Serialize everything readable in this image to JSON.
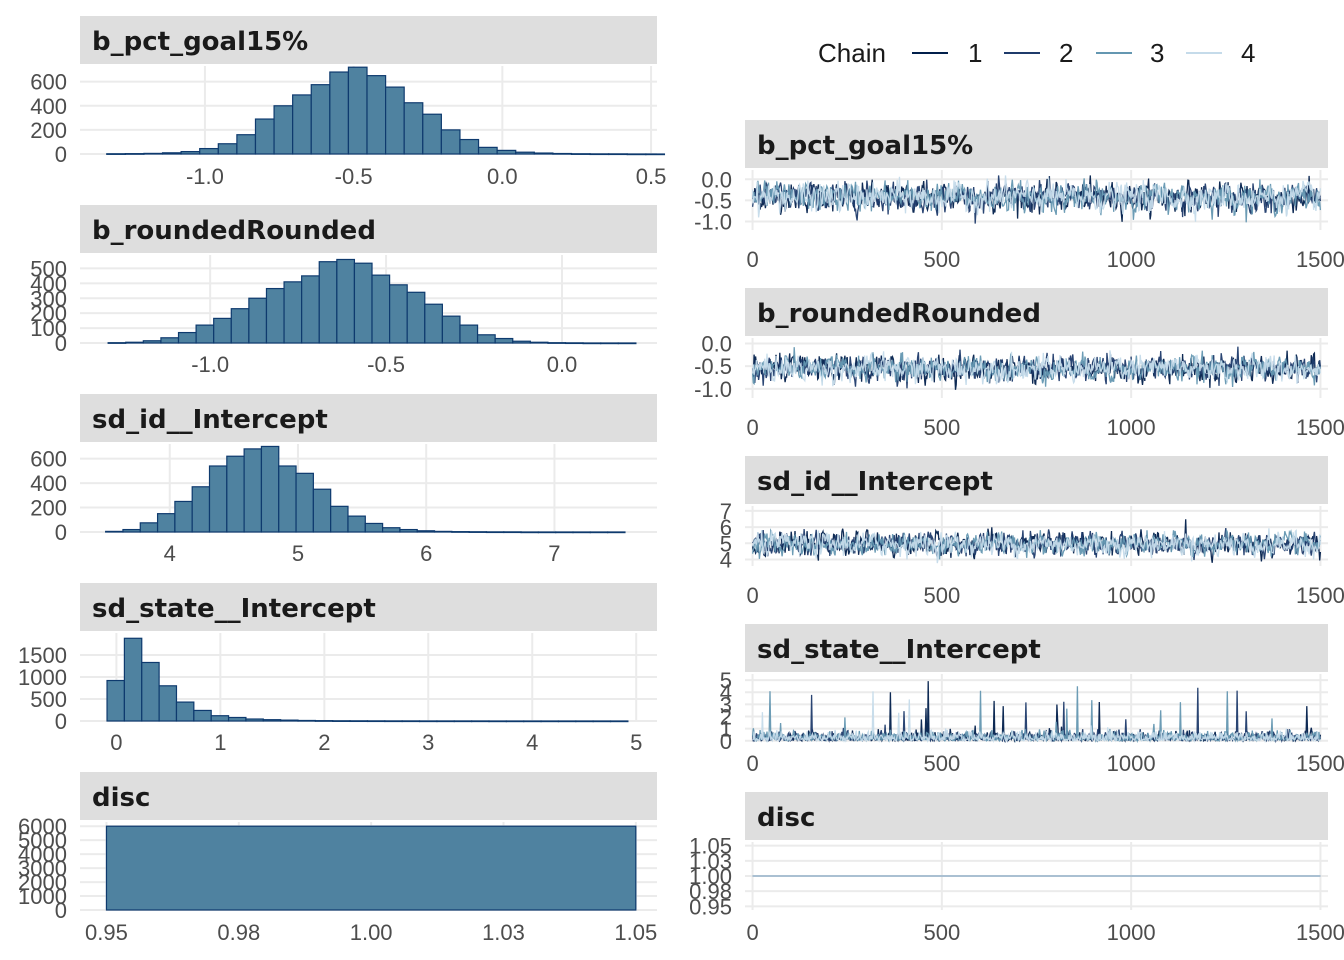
{
  "legend": {
    "title": "Chain",
    "items": [
      {
        "label": "1",
        "color": "#011f4b"
      },
      {
        "label": "2",
        "color": "#1f3b6b"
      },
      {
        "label": "3",
        "color": "#6497b1"
      },
      {
        "label": "4",
        "color": "#c5dbea"
      }
    ]
  },
  "chart_data": [
    {
      "type": "bar",
      "kind": "histogram",
      "title": "b_pct_goal15%",
      "xlim": [
        -1.42,
        0.52
      ],
      "ylim": [
        0,
        730
      ],
      "xticks": [
        -1.0,
        -0.5,
        0.0,
        0.5
      ],
      "xtick_labels": [
        "-1.0",
        "-0.5",
        "0.0",
        "0.5"
      ],
      "yticks": [
        0,
        200,
        400,
        600
      ],
      "ytick_labels": [
        "0",
        "200",
        "400",
        "600"
      ],
      "bin_start": -1.33,
      "bin_width": 0.0625,
      "values": [
        2,
        3,
        5,
        10,
        20,
        45,
        85,
        160,
        290,
        400,
        490,
        575,
        680,
        720,
        650,
        555,
        425,
        330,
        200,
        120,
        55,
        30,
        15,
        8,
        4,
        2,
        1,
        1,
        0,
        0
      ]
    },
    {
      "type": "bar",
      "kind": "histogram",
      "title": "b_roundedRounded",
      "xlim": [
        -1.37,
        0.27
      ],
      "ylim": [
        0,
        590
      ],
      "xticks": [
        -1.0,
        -0.5,
        0.0
      ],
      "xtick_labels": [
        "-1.0",
        "-0.5",
        "0.0"
      ],
      "yticks": [
        0,
        100,
        200,
        300,
        400,
        500
      ],
      "ytick_labels": [
        "0",
        "100",
        "200",
        "300",
        "400",
        "500"
      ],
      "bin_start": -1.29,
      "bin_width": 0.05,
      "values": [
        2,
        5,
        15,
        35,
        70,
        120,
        165,
        230,
        300,
        365,
        410,
        450,
        545,
        560,
        535,
        455,
        390,
        340,
        260,
        180,
        120,
        55,
        30,
        12,
        5,
        2,
        1,
        0,
        0,
        0
      ]
    },
    {
      "type": "bar",
      "kind": "histogram",
      "title": "sd_id__Intercept",
      "xlim": [
        3.3,
        7.8
      ],
      "ylim": [
        0,
        720
      ],
      "xticks": [
        4,
        5,
        6,
        7
      ],
      "xtick_labels": [
        "4",
        "5",
        "6",
        "7"
      ],
      "yticks": [
        0,
        200,
        400,
        600
      ],
      "ytick_labels": [
        "0",
        "200",
        "400",
        "600"
      ],
      "bin_start": 3.5,
      "bin_width": 0.135,
      "values": [
        5,
        20,
        75,
        150,
        250,
        370,
        540,
        620,
        680,
        700,
        540,
        480,
        350,
        210,
        130,
        70,
        35,
        20,
        10,
        5,
        3,
        2,
        1,
        1,
        0,
        0,
        0,
        0,
        0,
        0
      ]
    },
    {
      "type": "bar",
      "kind": "histogram",
      "title": "sd_state__Intercept",
      "xlim": [
        -0.35,
        5.2
      ],
      "ylim": [
        0,
        2000
      ],
      "xticks": [
        0,
        1,
        2,
        3,
        4,
        5
      ],
      "xtick_labels": [
        "0",
        "1",
        "2",
        "3",
        "4",
        "5"
      ],
      "yticks": [
        0,
        500,
        1000,
        1500
      ],
      "ytick_labels": [
        "0",
        "500",
        "1000",
        "1500"
      ],
      "bin_start": -0.09,
      "bin_width": 0.167,
      "values": [
        920,
        1880,
        1330,
        800,
        430,
        240,
        120,
        80,
        45,
        30,
        20,
        12,
        8,
        5,
        4,
        3,
        2,
        2,
        1,
        1,
        1,
        1,
        0,
        0,
        0,
        0,
        0,
        0,
        0,
        0
      ]
    },
    {
      "type": "bar",
      "kind": "histogram",
      "title": "disc",
      "xlim": [
        0.945,
        1.054
      ],
      "ylim": [
        0,
        6300
      ],
      "xticks": [
        0.95,
        0.975,
        1.0,
        1.025,
        1.05
      ],
      "xtick_labels": [
        "0.95",
        "0.98",
        "1.00",
        "1.03",
        "1.05"
      ],
      "yticks": [
        0,
        1000,
        2000,
        3000,
        4000,
        5000,
        6000
      ],
      "ytick_labels": [
        "0",
        "1000",
        "2000",
        "3000",
        "4000",
        "5000",
        "6000"
      ],
      "bin_start": 0.95,
      "bin_width": 0.1,
      "values": [
        6000
      ]
    },
    {
      "type": "line",
      "kind": "trace",
      "title": "b_pct_goal15%",
      "x": [
        0,
        1500
      ],
      "xlim": [
        -20,
        1520
      ],
      "ylim": [
        -1.2,
        0.22
      ],
      "xticks": [
        0,
        500,
        1000,
        1500
      ],
      "xtick_labels": [
        "0",
        "500",
        "1000",
        "1500"
      ],
      "yticks": [
        0.0,
        -0.5,
        -1.0
      ],
      "ytick_labels": [
        "0.0",
        "-0.5",
        "-1.0"
      ],
      "chains": 4,
      "center": -0.42,
      "spread": 0.24,
      "min": -1.22,
      "max": 0.25
    },
    {
      "type": "line",
      "kind": "trace",
      "title": "b_roundedRounded",
      "x": [
        0,
        1500
      ],
      "xlim": [
        -20,
        1520
      ],
      "ylim": [
        -1.2,
        0.12
      ],
      "xticks": [
        0,
        500,
        1000,
        1500
      ],
      "xtick_labels": [
        "0",
        "500",
        "1000",
        "1500"
      ],
      "yticks": [
        0.0,
        -0.5,
        -1.0
      ],
      "ytick_labels": [
        "0.0",
        "-0.5",
        "-1.0"
      ],
      "chains": 4,
      "center": -0.55,
      "spread": 0.2,
      "min": -1.28,
      "max": 0.22
    },
    {
      "type": "line",
      "kind": "trace",
      "title": "sd_id__Intercept",
      "x": [
        0,
        1500
      ],
      "xlim": [
        -20,
        1520
      ],
      "ylim": [
        3.6,
        7.3
      ],
      "xticks": [
        0,
        500,
        1000,
        1500
      ],
      "xtick_labels": [
        "0",
        "500",
        "1000",
        "1500"
      ],
      "yticks": [
        4,
        5,
        6,
        7
      ],
      "ytick_labels": [
        "4",
        "5",
        "6",
        "7"
      ],
      "chains": 4,
      "center": 4.95,
      "spread": 0.5,
      "min": 3.6,
      "max": 7.2
    },
    {
      "type": "line",
      "kind": "trace",
      "title": "sd_state__Intercept",
      "x": [
        0,
        1500
      ],
      "xlim": [
        -20,
        1520
      ],
      "ylim": [
        -0.1,
        5.5
      ],
      "xticks": [
        0,
        500,
        1000,
        1500
      ],
      "xtick_labels": [
        "0",
        "500",
        "1000",
        "1500"
      ],
      "yticks": [
        0,
        1,
        2,
        3,
        4,
        5
      ],
      "ytick_labels": [
        "0",
        "1",
        "2",
        "3",
        "4",
        "5"
      ],
      "chains": 4,
      "center": 0.4,
      "spread": 0.35,
      "min": 0,
      "max": 5.1
    },
    {
      "type": "line",
      "kind": "trace",
      "title": "disc",
      "x": [
        0,
        1500
      ],
      "xlim": [
        -20,
        1520
      ],
      "ylim": [
        0.944,
        1.056
      ],
      "xticks": [
        0,
        500,
        1000,
        1500
      ],
      "xtick_labels": [
        "0",
        "500",
        "1000",
        "1500"
      ],
      "yticks": [
        0.95,
        0.975,
        1.0,
        1.025,
        1.05
      ],
      "ytick_labels": [
        "0.95",
        "0.98",
        "1.00",
        "1.03",
        "1.05"
      ],
      "chains": 4,
      "center": 1.0,
      "spread": 0,
      "min": 1.0,
      "max": 1.0
    }
  ],
  "colors": {
    "bar_fill": "#4f82a0",
    "bar_outline": "#0e3a6e",
    "strip": "#dedede",
    "grid": "#ebebeb",
    "tick_text": "#4d4d4d"
  }
}
